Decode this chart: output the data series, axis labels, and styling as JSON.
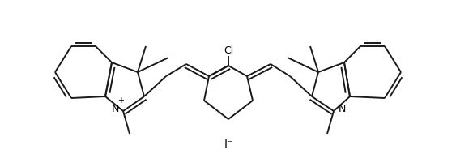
{
  "background_color": "#ffffff",
  "line_color": "#1a1a1a",
  "line_width": 1.4,
  "text_color": "#000000",
  "font_size": 8,
  "figsize": [
    5.63,
    2.07
  ],
  "dpi": 100,
  "xlim": [
    0,
    563
  ],
  "ylim": [
    0,
    207
  ],
  "dbo": 4.0
}
